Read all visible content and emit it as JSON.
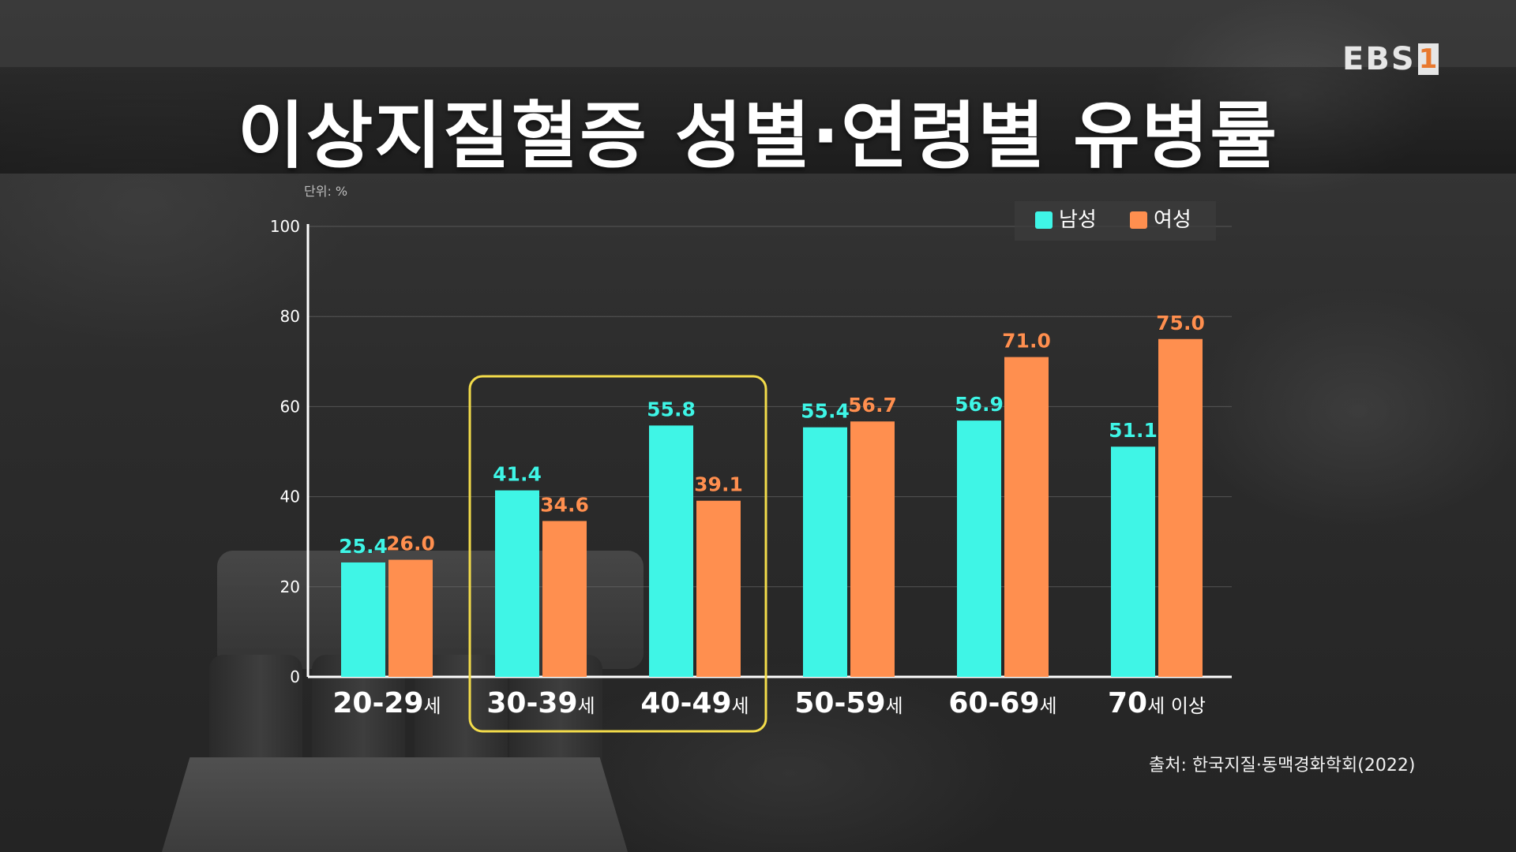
{
  "title": "이상지질혈증 성별·연령별 유병률",
  "logo": {
    "text": "EBS",
    "number": "1"
  },
  "unit_label": "단위: %",
  "source": "출처: 한국지질·동맥경화학회(2022)",
  "colors": {
    "male": "#3ff5e6",
    "female": "#ff8f4f",
    "highlight_box": "#f3dc4a",
    "axis": "#ffffff",
    "grid": "#777777"
  },
  "highlighted_categories": [
    "30-39세",
    "40-49세"
  ],
  "chart_data": {
    "type": "bar",
    "categories": [
      "20-29세",
      "30-39세",
      "40-49세",
      "50-59세",
      "60-69세",
      "70세 이상"
    ],
    "category_numbers": [
      "20-29",
      "30-39",
      "40-49",
      "50-59",
      "60-69",
      "70"
    ],
    "category_suffixes": [
      "세",
      "세",
      "세",
      "세",
      "세",
      "세 이상"
    ],
    "series": [
      {
        "name": "남성",
        "values": [
          25.4,
          41.4,
          55.8,
          55.4,
          56.9,
          51.1
        ],
        "labels": [
          "25.4",
          "41.4",
          "55.8",
          "55.4",
          "56.9",
          "51.1"
        ]
      },
      {
        "name": "여성",
        "values": [
          26.0,
          34.6,
          39.1,
          56.7,
          71.0,
          75.0
        ],
        "labels": [
          "26.0",
          "34.6",
          "39.1",
          "56.7",
          "71.0",
          "75.0"
        ]
      }
    ],
    "ylim": [
      0,
      100
    ],
    "yticks": [
      0,
      20,
      40,
      60,
      80,
      100
    ],
    "ytick_labels": [
      "0",
      "20",
      "40",
      "60",
      "80",
      "100"
    ],
    "grid": true,
    "legend": "top-right"
  }
}
